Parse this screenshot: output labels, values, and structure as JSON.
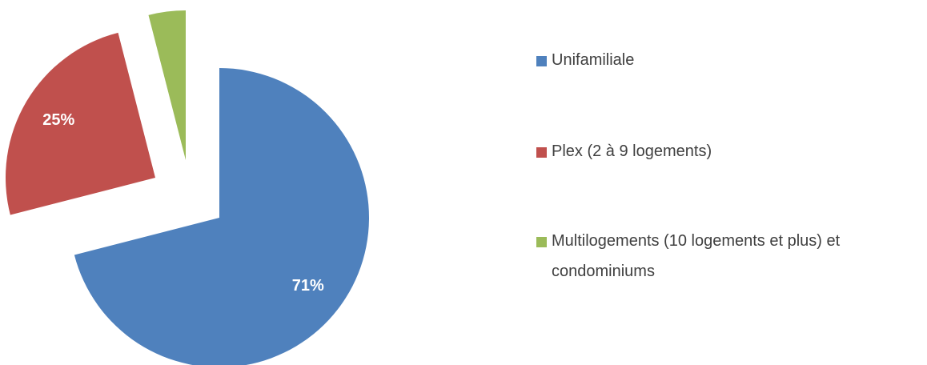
{
  "chart_data": {
    "type": "pie",
    "categories": [
      "Unifamiliale",
      "Plex (2 à 9 logements)",
      "Multilogements (10 logements et plus) et condominiums"
    ],
    "values": [
      71,
      25,
      4
    ],
    "value_labels": [
      "71%",
      "25%",
      null
    ],
    "colors": [
      "#4f81bd",
      "#c0504d",
      "#9bbb59"
    ],
    "legend": "right"
  }
}
